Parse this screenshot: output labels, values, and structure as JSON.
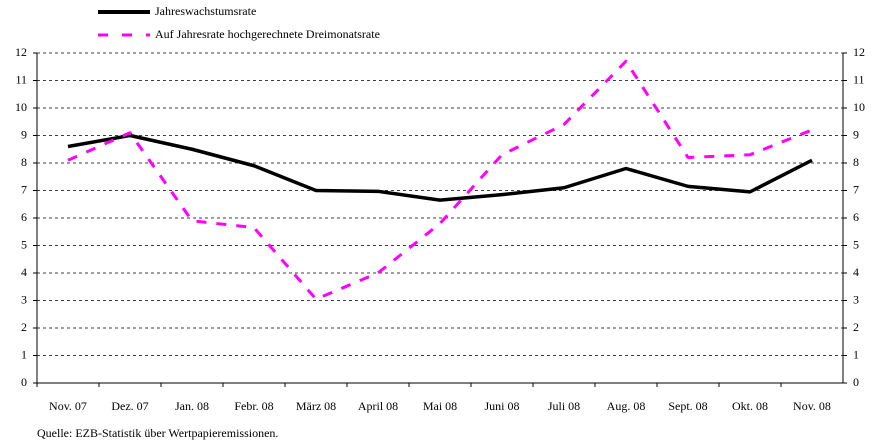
{
  "chart_data": {
    "type": "line",
    "categories": [
      "Nov. 07",
      "Dez. 07",
      "Jan. 08",
      "Febr. 08",
      "März 08",
      "April 08",
      "Mai 08",
      "Juni 08",
      "Juli 08",
      "Aug. 08",
      "Sept. 08",
      "Okt. 08",
      "Nov. 08"
    ],
    "series": [
      {
        "name": "Jahreswachstumsrate",
        "color": "#000000",
        "line_style": "solid",
        "values": [
          8.6,
          9.0,
          8.5,
          7.9,
          7.0,
          6.97,
          6.65,
          6.85,
          7.1,
          7.8,
          7.15,
          6.95,
          8.1
        ]
      },
      {
        "name": "Auf Jahresrate hochgerechnete Dreimonatsrate",
        "color": "#ff00ff",
        "line_style": "dashed",
        "values": [
          8.1,
          9.1,
          5.9,
          5.65,
          3.05,
          4.0,
          5.8,
          8.3,
          9.4,
          11.7,
          8.2,
          8.3,
          9.2
        ]
      }
    ],
    "ylim": [
      0,
      12
    ],
    "yticks": [
      0,
      1,
      2,
      3,
      4,
      5,
      6,
      7,
      8,
      9,
      10,
      11,
      12
    ],
    "y2lim": [
      0,
      12
    ],
    "y2ticks": [
      0,
      1,
      2,
      3,
      4,
      5,
      6,
      7,
      8,
      9,
      10,
      11,
      12
    ],
    "grid": true,
    "source": "Quelle: EZB-Statistik über Wertpapieremissionen."
  }
}
